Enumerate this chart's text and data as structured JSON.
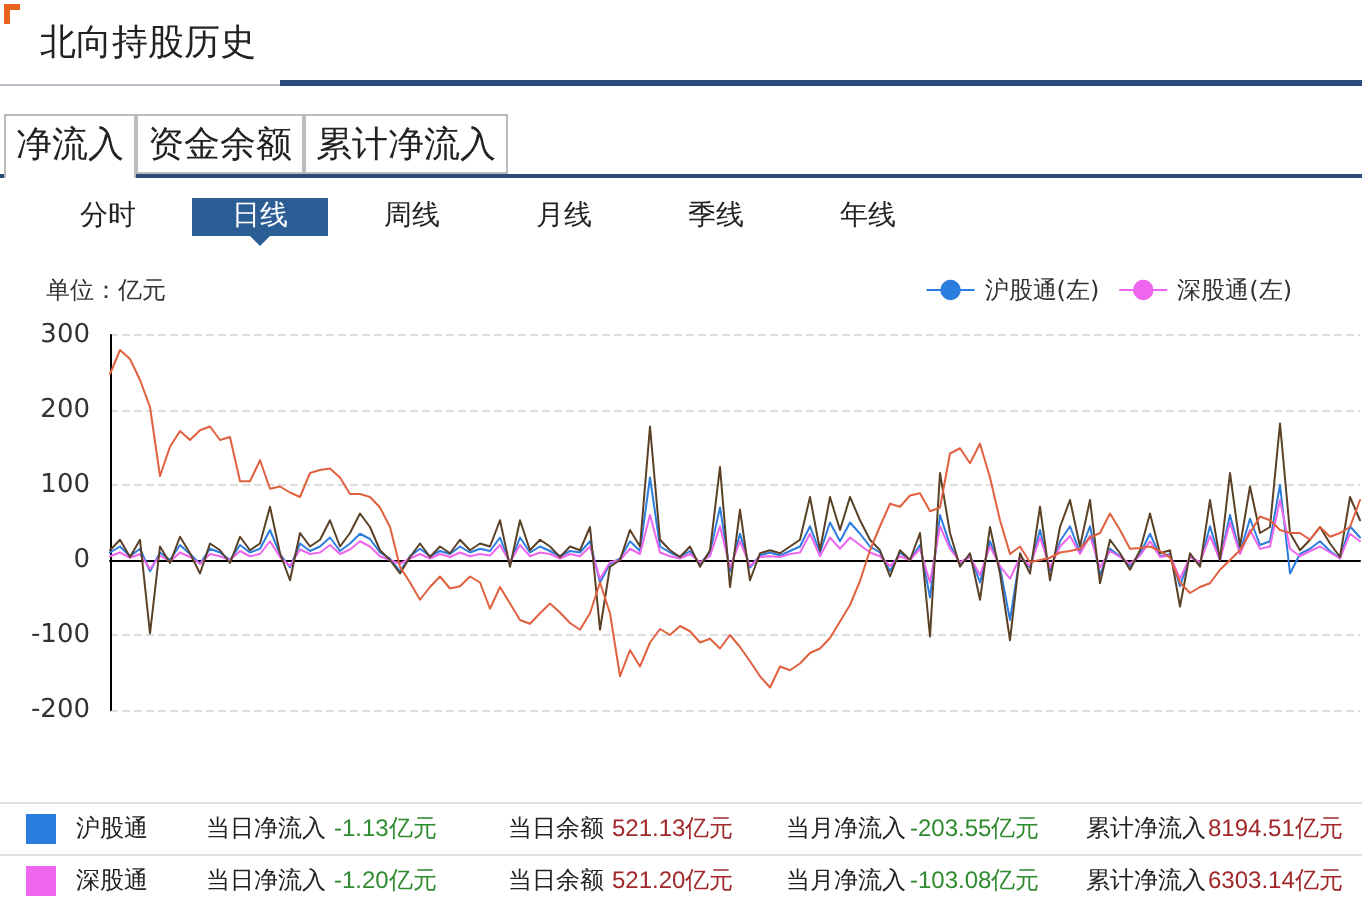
{
  "chart_data": {
    "type": "line",
    "title": "北向持股历史",
    "ylabel": "单位：亿元",
    "categories": [
      null,
      null,
      null,
      null,
      null,
      null,
      null,
      null,
      null,
      null,
      null,
      null,
      null,
      null,
      null,
      null,
      null,
      null,
      null,
      null,
      null,
      null,
      null,
      null,
      null,
      null,
      null,
      null,
      null,
      null,
      null,
      null,
      null,
      null,
      null,
      null,
      null,
      null,
      null,
      null,
      null,
      null,
      null,
      null,
      null,
      null,
      null,
      null,
      null,
      null,
      null,
      null,
      null,
      null,
      null,
      null,
      null,
      null,
      null,
      null,
      null,
      null,
      null,
      null,
      null,
      null,
      null,
      null,
      null,
      null,
      null,
      null,
      null,
      null,
      null,
      null,
      null,
      null,
      null,
      null,
      null,
      null,
      null,
      null,
      null,
      null,
      null,
      null,
      null,
      null,
      null,
      null,
      null,
      null,
      null,
      null,
      null,
      null,
      null,
      null,
      null,
      null,
      null,
      null,
      null,
      null,
      null,
      null,
      null,
      null,
      null,
      null,
      null,
      null,
      null,
      null,
      null,
      null,
      null,
      null,
      null,
      null,
      null,
      null,
      null,
      null
    ],
    "series": [
      {
        "name": "沪股通(左)",
        "color": "#2b7de0",
        "values": [
          10,
          18,
          5,
          15,
          -15,
          10,
          0,
          20,
          8,
          -5,
          15,
          10,
          0,
          20,
          10,
          15,
          40,
          8,
          -10,
          22,
          12,
          18,
          30,
          12,
          22,
          35,
          28,
          10,
          2,
          -15,
          5,
          15,
          5,
          12,
          8,
          18,
          10,
          15,
          12,
          30,
          -5,
          30,
          10,
          18,
          12,
          5,
          12,
          10,
          25,
          -30,
          -5,
          2,
          25,
          12,
          110,
          18,
          10,
          4,
          12,
          -5,
          10,
          70,
          -15,
          35,
          -10,
          6,
          10,
          6,
          12,
          18,
          45,
          10,
          50,
          25,
          50,
          35,
          18,
          10,
          -15,
          10,
          0,
          20,
          -50,
          60,
          20,
          -5,
          6,
          -30,
          25,
          -10,
          -80,
          5,
          -10,
          40,
          -15,
          25,
          45,
          10,
          45,
          -20,
          15,
          5,
          -8,
          8,
          35,
          5,
          8,
          -35,
          5,
          -5,
          45,
          0,
          60,
          10,
          55,
          20,
          25,
          100,
          -18,
          8,
          15,
          25,
          12,
          2,
          45,
          30
        ]
      },
      {
        "name": "深股通(左)",
        "color": "#ee66ee",
        "values": [
          5,
          10,
          3,
          8,
          -12,
          6,
          -2,
          10,
          4,
          -5,
          8,
          5,
          0,
          12,
          5,
          8,
          25,
          4,
          -8,
          14,
          8,
          10,
          20,
          8,
          14,
          25,
          18,
          5,
          0,
          -5,
          2,
          8,
          2,
          8,
          4,
          10,
          5,
          8,
          6,
          20,
          -3,
          20,
          5,
          10,
          8,
          2,
          8,
          5,
          18,
          -25,
          -3,
          0,
          15,
          8,
          60,
          10,
          5,
          2,
          8,
          -3,
          5,
          45,
          -10,
          25,
          -8,
          4,
          5,
          4,
          8,
          10,
          35,
          5,
          30,
          15,
          30,
          20,
          10,
          5,
          -8,
          5,
          0,
          15,
          -30,
          45,
          15,
          -3,
          4,
          -20,
          18,
          -8,
          -25,
          4,
          -8,
          30,
          -10,
          18,
          32,
          8,
          32,
          -10,
          12,
          4,
          -5,
          6,
          25,
          4,
          6,
          -25,
          4,
          -3,
          32,
          0,
          50,
          8,
          40,
          15,
          18,
          80,
          15,
          5,
          12,
          18,
          10,
          2,
          35,
          25
        ]
      },
      {
        "color": "#5a4126",
        "values": [
          13,
          27,
          4,
          27,
          -98,
          18,
          -4,
          31,
          9,
          -18,
          22,
          13,
          -4,
          31,
          13,
          22,
          71,
          9,
          -27,
          36,
          18,
          27,
          53,
          18,
          36,
          62,
          44,
          13,
          0,
          -18,
          4,
          22,
          4,
          18,
          9,
          27,
          13,
          22,
          18,
          53,
          -9,
          53,
          13,
          27,
          18,
          4,
          18,
          13,
          44,
          -93,
          -9,
          0,
          40,
          18,
          178,
          27,
          13,
          4,
          18,
          -9,
          13,
          124,
          -36,
          67,
          -27,
          9,
          13,
          9,
          18,
          27,
          84,
          13,
          84,
          40,
          84,
          53,
          27,
          13,
          -22,
          13,
          0,
          36,
          -102,
          116,
          36,
          -9,
          9,
          -53,
          44,
          -18,
          -107,
          9,
          -18,
          71,
          -27,
          44,
          80,
          18,
          80,
          -31,
          27,
          9,
          -13,
          13,
          62,
          9,
          13,
          -62,
          9,
          -9,
          80,
          0,
          116,
          18,
          98,
          36,
          44,
          182,
          36,
          13,
          27,
          44,
          22,
          4,
          84,
          53
        ]
      },
      {
        "color": "#e0603f",
        "values": [
          248,
          280,
          268,
          240,
          204,
          112,
          151,
          172,
          160,
          173,
          178,
          160,
          164,
          105,
          105,
          133,
          95,
          98,
          90,
          84,
          116,
          120,
          122,
          110,
          88,
          88,
          84,
          70,
          44,
          -9,
          -30,
          -53,
          -36,
          -22,
          -38,
          -35,
          -22,
          -30,
          -65,
          -36,
          -58,
          -80,
          -85,
          -71,
          -58,
          -70,
          -84,
          -93,
          -71,
          -30,
          -71,
          -155,
          -120,
          -142,
          -110,
          -92,
          -100,
          -88,
          -95,
          -110,
          -105,
          -118,
          -100,
          -116,
          -135,
          -155,
          -170,
          -142,
          -147,
          -138,
          -124,
          -118,
          -104,
          -82,
          -60,
          -28,
          13,
          45,
          75,
          71,
          86,
          89,
          65,
          70,
          142,
          149,
          129,
          155,
          110,
          53,
          8,
          18,
          -3,
          0,
          3,
          10,
          12,
          15,
          30,
          36,
          62,
          40,
          15,
          16,
          18,
          12,
          3,
          -30,
          -44,
          -36,
          -31,
          -13,
          0,
          13,
          36,
          58,
          53,
          40,
          36,
          36,
          27,
          44,
          31,
          36,
          44,
          80
        ]
      }
    ],
    "ylim": [
      -200,
      300
    ],
    "yticks": [
      -200,
      -100,
      0,
      100,
      200,
      300
    ],
    "grid": "y",
    "legend": "top right",
    "tick_labels": "y",
    "marker": "none",
    "line_style": "solid",
    "annotations": [
      "净流入",
      "资金余额",
      "累计净流入",
      "分时",
      "日线",
      "周线",
      "月线",
      "季线",
      "年线",
      "沪股通",
      "当日净流入",
      "-1.13亿元",
      "当日余额",
      "521.13亿元",
      "当月净流入",
      "-203.55亿元",
      "累计净流入",
      "8194.51亿元",
      "深股通",
      "当日净流入",
      "-1.20亿元",
      "当日余额",
      "521.20亿元",
      "当月净流入",
      "-103.08亿元",
      "累计净流入",
      "6303.14亿元"
    ]
  }
}
